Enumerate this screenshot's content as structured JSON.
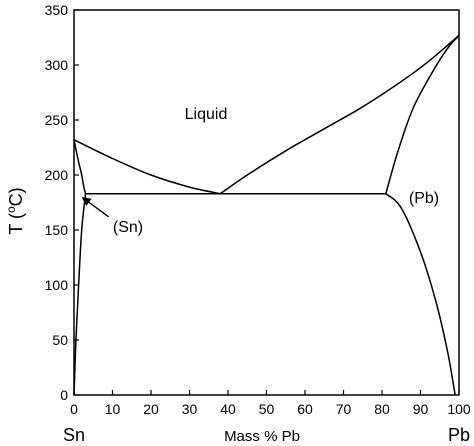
{
  "chart_data": {
    "type": "line",
    "title": "",
    "xlabel": "Mass % Pb",
    "ylabel": "T (°C)",
    "ylabel_parts": {
      "pre": "T (",
      "sup": "o",
      "post": "C)"
    },
    "xlim": [
      0,
      100
    ],
    "ylim": [
      0,
      350
    ],
    "x_ticks": [
      0,
      10,
      20,
      30,
      40,
      50,
      60,
      70,
      80,
      90,
      100
    ],
    "y_ticks": [
      0,
      50,
      100,
      150,
      200,
      250,
      300,
      350
    ],
    "grid": false,
    "end_labels": {
      "left": "Sn",
      "right": "Pb"
    },
    "region_labels": {
      "liquid": "Liquid",
      "sn_phase": "(Sn)",
      "pb_phase": "(Pb)"
    },
    "series": [
      {
        "id": "liquidus-sn",
        "points": [
          [
            0,
            232
          ],
          [
            10,
            215
          ],
          [
            20,
            200
          ],
          [
            30,
            189
          ],
          [
            38,
            183
          ]
        ]
      },
      {
        "id": "liquidus-pb",
        "points": [
          [
            38,
            183
          ],
          [
            45,
            200
          ],
          [
            55,
            222
          ],
          [
            65,
            242
          ],
          [
            75,
            262
          ],
          [
            85,
            285
          ],
          [
            92,
            303
          ],
          [
            100,
            327
          ]
        ]
      },
      {
        "id": "solidus-pb",
        "points": [
          [
            81,
            183
          ],
          [
            84,
            220
          ],
          [
            88,
            260
          ],
          [
            93,
            293
          ],
          [
            97,
            315
          ],
          [
            100,
            327
          ]
        ]
      },
      {
        "id": "solvus-pb",
        "points": [
          [
            81,
            183
          ],
          [
            85,
            170
          ],
          [
            90,
            130
          ],
          [
            94,
            85
          ],
          [
            97,
            40
          ],
          [
            99,
            0
          ]
        ]
      },
      {
        "id": "solidus-sn",
        "points": [
          [
            0,
            232
          ],
          [
            1,
            215
          ],
          [
            2,
            200
          ],
          [
            2.5,
            190
          ],
          [
            3,
            183
          ]
        ]
      },
      {
        "id": "solvus-sn",
        "points": [
          [
            3,
            183
          ],
          [
            2,
            150
          ],
          [
            1.2,
            100
          ],
          [
            0.5,
            50
          ],
          [
            0,
            0
          ]
        ]
      },
      {
        "id": "eutectic",
        "points": [
          [
            3,
            183
          ],
          [
            81,
            183
          ]
        ]
      }
    ],
    "arrow": {
      "from": [
        9,
        162
      ],
      "to": [
        2,
        180
      ]
    }
  }
}
